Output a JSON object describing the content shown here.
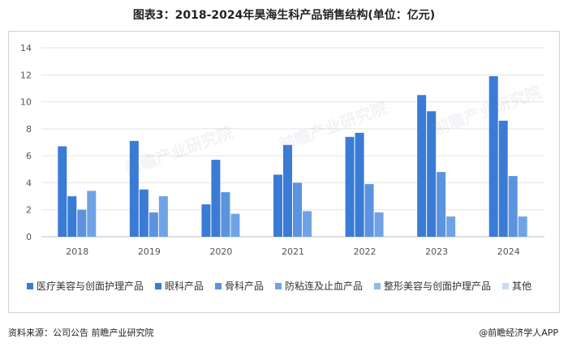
{
  "title": "图表3：2018-2024年昊海生科产品销售结构(单位：亿元)",
  "source": "资料来源：公司公告 前瞻产业研究院",
  "brand": "@前瞻经济学人APP",
  "watermark": "前瞻产业研究院",
  "chart_data": {
    "type": "bar",
    "title": "图表3：2018-2024年昊海生科产品销售结构(单位：亿元)",
    "categories": [
      "2018",
      "2019",
      "2020",
      "2021",
      "2022",
      "2023",
      "2024"
    ],
    "ylim": [
      0,
      14
    ],
    "yticks": [
      0,
      2,
      4,
      6,
      8,
      10,
      12,
      14
    ],
    "grid": true,
    "legend_position": "bottom",
    "series": [
      {
        "name": "医疗美容与创面护理产品",
        "color": "#3a7bd5",
        "values": [
          6.7,
          7.1,
          2.4,
          4.6,
          7.4,
          10.5,
          11.9
        ]
      },
      {
        "name": "眼科产品",
        "color": "#3a7bd5",
        "values": [
          3.0,
          3.5,
          5.7,
          6.8,
          7.7,
          9.3,
          8.6
        ]
      },
      {
        "name": "骨科产品",
        "color": "#5b93de",
        "values": [
          2.0,
          1.8,
          3.3,
          4.0,
          3.9,
          4.8,
          4.5
        ]
      },
      {
        "name": "防粘连及止血产品",
        "color": "#6fa3e6",
        "values": [
          3.4,
          3.0,
          1.7,
          1.9,
          1.8,
          1.5,
          1.5
        ]
      },
      {
        "name": "整形美容与创面护理产品",
        "color": "#8fb9ee",
        "values": [
          null,
          null,
          null,
          null,
          null,
          null,
          null
        ]
      },
      {
        "name": "其他",
        "color": "#c7dcf5",
        "values": [
          null,
          null,
          null,
          null,
          null,
          null,
          null
        ]
      }
    ]
  }
}
